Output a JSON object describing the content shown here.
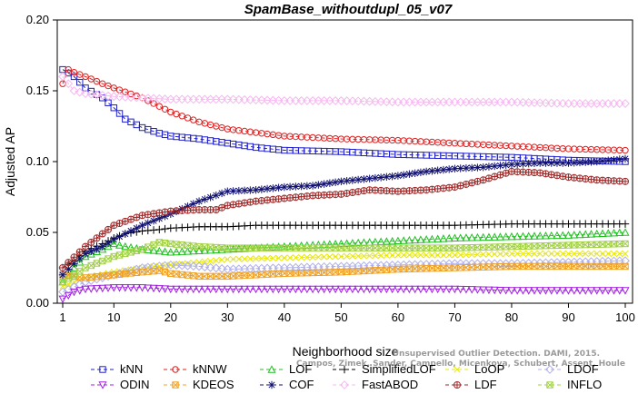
{
  "watermark_lines": [
    "Unsupervised Outlier Detection. DAMI, 2015.",
    "Campos, Zimek, Sander, Campello, Micenkova, Schubert, Assent, Houle"
  ],
  "chart_data": {
    "type": "line",
    "title": "SpamBase_withoutdupl_05_v07",
    "xlabel": "Neighborhood size",
    "ylabel": "Adjusted AP",
    "xlim": [
      1,
      100
    ],
    "ylim": [
      0,
      0.2
    ],
    "xticks": [
      "1",
      "10",
      "20",
      "30",
      "40",
      "50",
      "60",
      "70",
      "80",
      "90",
      "100"
    ],
    "xtick_values": [
      1,
      10,
      20,
      30,
      40,
      50,
      60,
      70,
      80,
      90,
      100
    ],
    "yticks": [
      "0.00",
      "0.05",
      "0.10",
      "0.15",
      "0.20"
    ],
    "ytick_values": [
      0,
      0.05,
      0.1,
      0.15,
      0.2
    ],
    "grid": false,
    "legend_position": "bottom",
    "series": [
      {
        "name": "kNN",
        "color": "#1f1fd0",
        "marker": "square",
        "dash": "4,3",
        "x": [
          1,
          3,
          5,
          8,
          10,
          12,
          15,
          18,
          20,
          25,
          30,
          35,
          40,
          50,
          60,
          70,
          80,
          90,
          100
        ],
        "values": [
          0.165,
          0.16,
          0.152,
          0.145,
          0.138,
          0.13,
          0.124,
          0.12,
          0.118,
          0.116,
          0.113,
          0.11,
          0.108,
          0.107,
          0.105,
          0.104,
          0.103,
          0.101,
          0.1
        ]
      },
      {
        "name": "kNNW",
        "color": "#e02020",
        "marker": "circle",
        "dash": "4,3",
        "x": [
          1,
          2,
          3,
          5,
          8,
          10,
          15,
          20,
          25,
          30,
          40,
          50,
          60,
          70,
          80,
          90,
          100
        ],
        "values": [
          0.155,
          0.165,
          0.163,
          0.16,
          0.155,
          0.152,
          0.145,
          0.135,
          0.128,
          0.123,
          0.118,
          0.116,
          0.115,
          0.113,
          0.111,
          0.109,
          0.108
        ]
      },
      {
        "name": "LOF",
        "color": "#20c020",
        "marker": "triangle",
        "dash": "4,3",
        "x": [
          1,
          3,
          5,
          8,
          10,
          12,
          15,
          20,
          25,
          30,
          40,
          50,
          60,
          70,
          80,
          90,
          100
        ],
        "values": [
          0.015,
          0.025,
          0.033,
          0.038,
          0.042,
          0.04,
          0.038,
          0.036,
          0.037,
          0.038,
          0.04,
          0.042,
          0.044,
          0.046,
          0.047,
          0.048,
          0.05
        ]
      },
      {
        "name": "SimplifiedLOF",
        "color": "#000000",
        "marker": "plus",
        "dash": "4,3",
        "x": [
          1,
          3,
          5,
          8,
          10,
          12,
          15,
          18,
          20,
          25,
          30,
          35,
          40,
          50,
          60,
          70,
          80,
          90,
          100
        ],
        "values": [
          0.025,
          0.03,
          0.037,
          0.042,
          0.046,
          0.049,
          0.051,
          0.052,
          0.053,
          0.054,
          0.054,
          0.055,
          0.055,
          0.055,
          0.055,
          0.055,
          0.056,
          0.056,
          0.056
        ]
      },
      {
        "name": "LoOP",
        "color": "#e8e800",
        "marker": "cross",
        "dash": "4,3",
        "x": [
          1,
          5,
          10,
          15,
          20,
          25,
          30,
          40,
          50,
          60,
          70,
          80,
          90,
          100
        ],
        "values": [
          0.012,
          0.018,
          0.022,
          0.025,
          0.027,
          0.029,
          0.031,
          0.032,
          0.033,
          0.034,
          0.034,
          0.035,
          0.035,
          0.035
        ]
      },
      {
        "name": "LDOF",
        "color": "#b0b0e8",
        "marker": "diamond",
        "dash": "4,3",
        "x": [
          1,
          5,
          10,
          15,
          20,
          25,
          30,
          40,
          50,
          60,
          70,
          80,
          90,
          100
        ],
        "values": [
          0.008,
          0.015,
          0.02,
          0.025,
          0.027,
          0.026,
          0.024,
          0.025,
          0.026,
          0.027,
          0.028,
          0.028,
          0.029,
          0.03
        ]
      },
      {
        "name": "ODIN",
        "color": "#a020e0",
        "marker": "triangle-down",
        "dash": "4,3",
        "x": [
          1,
          3,
          5,
          10,
          15,
          20,
          30,
          40,
          50,
          60,
          70,
          80,
          90,
          100
        ],
        "values": [
          0.003,
          0.008,
          0.01,
          0.011,
          0.011,
          0.01,
          0.01,
          0.01,
          0.01,
          0.01,
          0.01,
          0.009,
          0.009,
          0.009
        ]
      },
      {
        "name": "KDEOS",
        "color": "#f0a020",
        "marker": "boxtimes",
        "dash": "4,3",
        "x": [
          1,
          5,
          10,
          15,
          18,
          20,
          25,
          30,
          40,
          50,
          60,
          70,
          80,
          90,
          100
        ],
        "values": [
          0.02,
          0.018,
          0.02,
          0.022,
          0.023,
          0.021,
          0.019,
          0.019,
          0.021,
          0.022,
          0.024,
          0.025,
          0.026,
          0.026,
          0.026
        ]
      },
      {
        "name": "COF",
        "color": "#101070",
        "marker": "asterisk",
        "dash": "4,3",
        "x": [
          1,
          3,
          5,
          8,
          10,
          15,
          20,
          25,
          30,
          35,
          40,
          45,
          50,
          55,
          60,
          65,
          70,
          75,
          80,
          85,
          90,
          95,
          100
        ],
        "values": [
          0.02,
          0.028,
          0.035,
          0.04,
          0.045,
          0.055,
          0.063,
          0.072,
          0.079,
          0.08,
          0.082,
          0.083,
          0.086,
          0.088,
          0.09,
          0.093,
          0.095,
          0.096,
          0.098,
          0.099,
          0.099,
          0.1,
          0.102
        ]
      },
      {
        "name": "FastABOD",
        "color": "#f6b8f0",
        "marker": "diamond",
        "dash": "4,3",
        "x": [
          1,
          2,
          3,
          5,
          10,
          15,
          20,
          30,
          40,
          50,
          60,
          70,
          80,
          90,
          100
        ],
        "values": [
          0.16,
          0.155,
          0.15,
          0.148,
          0.146,
          0.145,
          0.144,
          0.144,
          0.143,
          0.143,
          0.142,
          0.142,
          0.142,
          0.141,
          0.141
        ]
      },
      {
        "name": "LDF",
        "color": "#a02828",
        "marker": "circleplus",
        "dash": "4,3",
        "x": [
          1,
          5,
          10,
          15,
          20,
          25,
          28,
          30,
          35,
          40,
          45,
          50,
          55,
          60,
          65,
          70,
          75,
          80,
          85,
          90,
          95,
          100
        ],
        "values": [
          0.025,
          0.04,
          0.055,
          0.062,
          0.065,
          0.066,
          0.066,
          0.069,
          0.072,
          0.074,
          0.076,
          0.077,
          0.08,
          0.079,
          0.08,
          0.082,
          0.087,
          0.093,
          0.092,
          0.089,
          0.087,
          0.086
        ]
      },
      {
        "name": "INFLO",
        "color": "#a0d040",
        "marker": "boxtimes",
        "dash": "4,3",
        "x": [
          1,
          5,
          10,
          15,
          18,
          20,
          25,
          30,
          40,
          50,
          60,
          70,
          80,
          90,
          100
        ],
        "values": [
          0.015,
          0.025,
          0.033,
          0.038,
          0.043,
          0.042,
          0.04,
          0.039,
          0.039,
          0.039,
          0.039,
          0.039,
          0.04,
          0.041,
          0.042
        ]
      }
    ]
  }
}
